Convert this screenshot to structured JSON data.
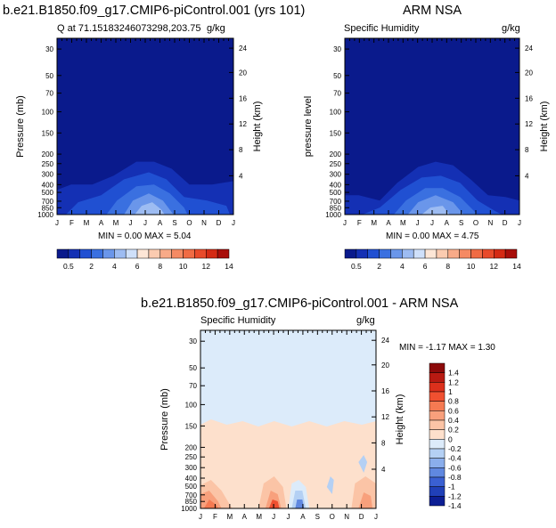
{
  "chart_data": [
    {
      "type": "heatmap",
      "title": "b.e21.B1850.f09_g17.CMIP6-piControl.001 (yrs 101)",
      "left_string": "Q at 71.15183246073298,203.75",
      "right_string": "g/kg",
      "ylabel": "Pressure (mb)",
      "ylabel_right": "Height (km)",
      "x_ticks": [
        "J",
        "F",
        "M",
        "A",
        "M",
        "J",
        "J",
        "A",
        "S",
        "O",
        "N",
        "D",
        "J"
      ],
      "y_ticks": [
        "30",
        "50",
        "70",
        "100",
        "150",
        "200",
        "250",
        "300",
        "400",
        "500",
        "700",
        "850",
        "1000"
      ],
      "height_ticks": [
        "24",
        "20",
        "16",
        "12",
        "8",
        "4"
      ],
      "min_max": "MIN =   0.00 MAX =   5.04",
      "min": 0.0,
      "max": 5.04
    },
    {
      "type": "heatmap",
      "title": "ARM NSA",
      "left_string": "Specific Humidity",
      "right_string": "g/kg",
      "ylabel": "pressure level",
      "ylabel_right": "Height (km)",
      "x_ticks": [
        "J",
        "F",
        "M",
        "A",
        "M",
        "J",
        "J",
        "A",
        "S",
        "O",
        "N",
        "D",
        "J"
      ],
      "y_ticks": [
        "30",
        "50",
        "70",
        "100",
        "150",
        "200",
        "250",
        "300",
        "400",
        "500",
        "700",
        "850",
        "1000"
      ],
      "height_ticks": [
        "24",
        "20",
        "16",
        "12",
        "8",
        "4"
      ],
      "min_max": "MIN =   0.00 MAX =   4.75",
      "min": 0.0,
      "max": 4.75
    },
    {
      "type": "heatmap",
      "title": "b.e21.B1850.f09_g17.CMIP6-piControl.001 - ARM NSA",
      "left_string": "Specific Humidity",
      "right_string": "g/kg",
      "ylabel": "Pressure (mb)",
      "ylabel_right": "Height (km)",
      "x_ticks": [
        "J",
        "F",
        "M",
        "A",
        "M",
        "J",
        "J",
        "A",
        "S",
        "O",
        "N",
        "D",
        "J"
      ],
      "y_ticks": [
        "30",
        "50",
        "70",
        "100",
        "150",
        "200",
        "250",
        "300",
        "400",
        "500",
        "700",
        "850",
        "1000"
      ],
      "height_ticks": [
        "24",
        "20",
        "16",
        "12",
        "8",
        "4"
      ],
      "min_max": "MIN =  -1.17 MAX =   1.30",
      "min": -1.17,
      "max": 1.3
    }
  ],
  "colorbar_top": {
    "labels": [
      "0.5",
      "2",
      "4",
      "6",
      "8",
      "10",
      "12",
      "14"
    ],
    "colors": [
      "#0a1a8c",
      "#1430b4",
      "#2050d2",
      "#3a70e0",
      "#6a96ea",
      "#9dbcf2",
      "#cfe0fa",
      "#fde6d6",
      "#fbcbb0",
      "#f8aa88",
      "#f58a63",
      "#f06b44",
      "#e84a2a",
      "#d42a14",
      "#a80e0a"
    ]
  },
  "colorbar_diff": {
    "labels": [
      "1.4",
      "1.2",
      "1",
      "0.8",
      "0.6",
      "0.4",
      "0.2",
      "0",
      "-0.2",
      "-0.4",
      "-0.6",
      "-0.8",
      "-1",
      "-1.2",
      "-1.4"
    ],
    "colors": [
      "#8c0a0a",
      "#b81a12",
      "#dc301c",
      "#f05030",
      "#f57a52",
      "#f8a07c",
      "#fbc4a6",
      "#fde0cc",
      "#dcebfa",
      "#b4d0f4",
      "#8aaeec",
      "#6088e0",
      "#3a60d2",
      "#2040b8",
      "#0c1e94"
    ]
  }
}
